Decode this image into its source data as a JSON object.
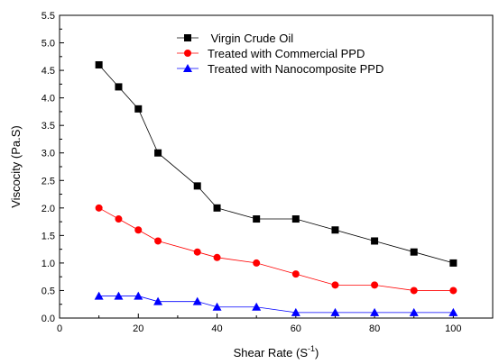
{
  "chart_data": {
    "type": "line",
    "xlabel_main": "Shear Rate (S",
    "xlabel_sup": "-1",
    "xlabel_close": ")",
    "ylabel": "Viscocity (Pa.S)",
    "xlim": [
      0,
      110
    ],
    "ylim": [
      0.0,
      5.5
    ],
    "x_ticks": [
      0,
      20,
      40,
      60,
      80,
      100
    ],
    "x_tick_labels": [
      "0",
      "20",
      "40",
      "60",
      "80",
      "100"
    ],
    "y_ticks": [
      0.0,
      0.5,
      1.0,
      1.5,
      2.0,
      2.5,
      3.0,
      3.5,
      4.0,
      4.5,
      5.0,
      5.5
    ],
    "y_tick_labels": [
      "0.0",
      "0.5",
      "1.0",
      "1.5",
      "2.0",
      "2.5",
      "3.0",
      "3.5",
      "4.0",
      "4.5",
      "5.0",
      "5.5"
    ],
    "grid": false,
    "legend_position": "top-center",
    "series": [
      {
        "name": " Virgin Crude Oil",
        "marker": "square",
        "color": "#000000",
        "x": [
          10,
          15,
          20,
          25,
          35,
          40,
          50,
          60,
          70,
          80,
          90,
          100
        ],
        "y": [
          4.6,
          4.2,
          3.8,
          3.0,
          2.4,
          2.0,
          1.8,
          1.8,
          1.6,
          1.4,
          1.2,
          1.0
        ]
      },
      {
        "name": "Treated with Commercial PPD",
        "marker": "circle",
        "color": "#ff0000",
        "x": [
          10,
          15,
          20,
          25,
          35,
          40,
          50,
          60,
          70,
          80,
          90,
          100
        ],
        "y": [
          2.0,
          1.8,
          1.6,
          1.4,
          1.2,
          1.1,
          1.0,
          0.8,
          0.6,
          0.6,
          0.5,
          0.5
        ]
      },
      {
        "name": "Treated with Nanocomposite PPD",
        "marker": "triangle",
        "color": "#0000ff",
        "x": [
          10,
          15,
          20,
          25,
          35,
          40,
          50,
          60,
          70,
          80,
          90,
          100
        ],
        "y": [
          0.4,
          0.4,
          0.4,
          0.3,
          0.3,
          0.2,
          0.2,
          0.1,
          0.1,
          0.1,
          0.1,
          0.1
        ]
      }
    ]
  }
}
